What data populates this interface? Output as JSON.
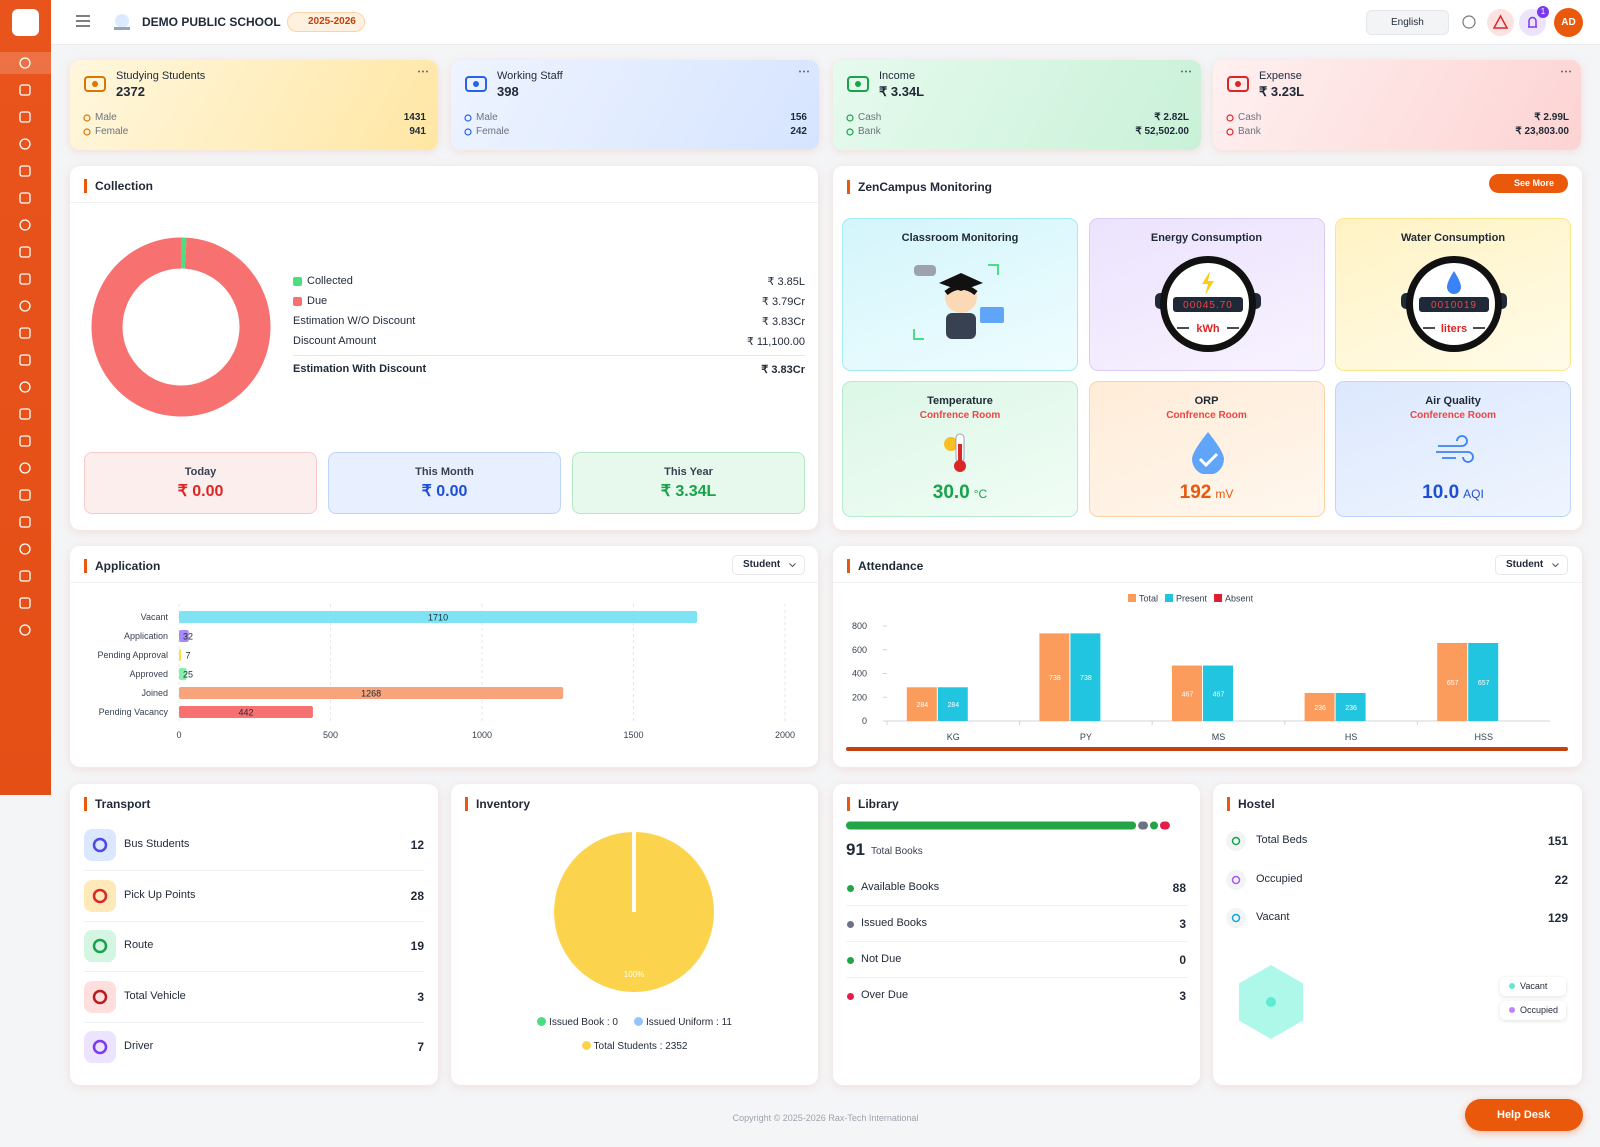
{
  "header": {
    "school": "DEMO PUBLIC SCHOOL",
    "session": "2025-2026",
    "language": "English",
    "notifications": "1",
    "avatar": "AD"
  },
  "stats": [
    {
      "title": "Studying Students",
      "value": 2372,
      "rows": [
        {
          "label": "Male",
          "value": 1431
        },
        {
          "label": "Female",
          "value": 941
        }
      ]
    },
    {
      "title": "Working Staff",
      "value": 398,
      "rows": [
        {
          "label": "Male",
          "value": 156
        },
        {
          "label": "Female",
          "value": 242
        }
      ]
    },
    {
      "title": "Income",
      "value": "₹ 3.34L",
      "rows": [
        {
          "label": "Cash",
          "value": "₹ 2.82L"
        },
        {
          "label": "Bank",
          "value": "₹ 52,502.00"
        }
      ]
    },
    {
      "title": "Expense",
      "value": "₹ 3.23L",
      "rows": [
        {
          "label": "Cash",
          "value": "₹ 2.99L"
        },
        {
          "label": "Bank",
          "value": "₹ 23,803.00"
        }
      ]
    }
  ],
  "collection": {
    "title": "Collection",
    "chart": {
      "type": "donut",
      "categories": [
        "Collected",
        "Due"
      ],
      "values": [
        3.85,
        379
      ],
      "value_labels": [
        "₹ 3.85L",
        "₹ 3.79Cr"
      ],
      "colors": [
        "#4ade80",
        "#f87171"
      ]
    },
    "details": [
      {
        "label": "Estimation W/O Discount",
        "value": "₹ 3.83Cr"
      },
      {
        "label": "Discount Amount",
        "value": "₹ 11,100.00"
      }
    ],
    "total": {
      "label": "Estimation With Discount",
      "value": "₹ 3.83Cr"
    },
    "periods": [
      {
        "label": "Today",
        "value": "₹ 0.00"
      },
      {
        "label": "This Month",
        "value": "₹ 0.00"
      },
      {
        "label": "This Year",
        "value": "₹ 3.34L"
      }
    ]
  },
  "monitoring": {
    "title": "ZenCampus Monitoring",
    "action": "See More",
    "tiles": [
      {
        "title": "Classroom Monitoring"
      },
      {
        "title": "Energy Consumption",
        "reading": "00045.70",
        "unit": "kWh"
      },
      {
        "title": "Water Consumption",
        "reading": "0010019",
        "unit": "liters"
      },
      {
        "title": "Temperature",
        "location": "Confrence Room",
        "value": "30.0",
        "unit": "°C"
      },
      {
        "title": "ORP",
        "location": "Confrence Room",
        "value": "192",
        "unit": "mV"
      },
      {
        "title": "Air Quality",
        "location": "Conference Room",
        "value": "10.0",
        "unit": "AQI"
      }
    ]
  },
  "application": {
    "title": "Application",
    "filter": "Student",
    "chart": {
      "type": "hbar",
      "categories": [
        "Vacant",
        "Application",
        "Pending Approval",
        "Approved",
        "Joined",
        "Pending Vacancy"
      ],
      "values": [
        1710,
        32,
        7,
        25,
        1268,
        442
      ],
      "colors": [
        "#7fe3f4",
        "#a78bfa",
        "#fde047",
        "#86efac",
        "#f7a47c",
        "#f87171"
      ],
      "xlim": [
        0,
        2000
      ],
      "xticks": [
        0,
        500,
        1000,
        1500,
        2000
      ],
      "grid": true
    }
  },
  "attendance": {
    "title": "Attendance",
    "filter": "Student",
    "chart": {
      "type": "bar",
      "categories": [
        "KG",
        "PY",
        "MS",
        "HS",
        "HSS"
      ],
      "series": [
        {
          "name": "Total",
          "color": "#fb9c5c",
          "values": [
            284,
            738,
            467,
            236,
            657
          ]
        },
        {
          "name": "Present",
          "color": "#22c5df",
          "values": [
            284,
            738,
            467,
            236,
            657
          ]
        },
        {
          "name": "Absent",
          "color": "#dc1f2e",
          "values": [
            0,
            0,
            0,
            0,
            0
          ]
        }
      ],
      "ylim": [
        0,
        800
      ],
      "yticks": [
        0,
        200,
        400,
        600,
        800
      ]
    }
  },
  "transport": {
    "title": "Transport",
    "items": [
      {
        "label": "Bus Students",
        "value": 12
      },
      {
        "label": "Pick Up Points",
        "value": 28
      },
      {
        "label": "Route",
        "value": 19
      },
      {
        "label": "Total Vehicle",
        "value": 3
      },
      {
        "label": "Driver",
        "value": 7
      }
    ]
  },
  "inventory": {
    "title": "Inventory",
    "chart": {
      "type": "pie",
      "values": [
        100
      ],
      "value_labels": [
        "100%"
      ],
      "colors": [
        "#fcd34d"
      ]
    },
    "legend": [
      {
        "label": "Issued Book : 0",
        "color": "#4ade80"
      },
      {
        "label": "Issued Uniform : 11",
        "color": "#93c5fd"
      },
      {
        "label": "Total Students : 2352",
        "color": "#fcd34d"
      }
    ]
  },
  "library": {
    "title": "Library",
    "total": 91,
    "total_label": "Total Books",
    "items": [
      {
        "label": "Available Books",
        "value": 88,
        "color": "#22a447"
      },
      {
        "label": "Issued Books",
        "value": 3,
        "color": "#6b7280"
      },
      {
        "label": "Not Due",
        "value": 0,
        "color": "#22a447"
      },
      {
        "label": "Over Due",
        "value": 3,
        "color": "#e11d48"
      }
    ]
  },
  "hostel": {
    "title": "Hostel",
    "items": [
      {
        "label": "Total Beds",
        "value": 151
      },
      {
        "label": "Occupied",
        "value": 22
      },
      {
        "label": "Vacant",
        "value": 129
      }
    ],
    "legend": [
      {
        "label": "Vacant",
        "color": "#5eead4"
      },
      {
        "label": "Occupied",
        "color": "#c084fc"
      }
    ]
  },
  "footer": {
    "copyright": "Copyright © 2025-2026 Rax-Tech International",
    "help": "Help Desk"
  }
}
